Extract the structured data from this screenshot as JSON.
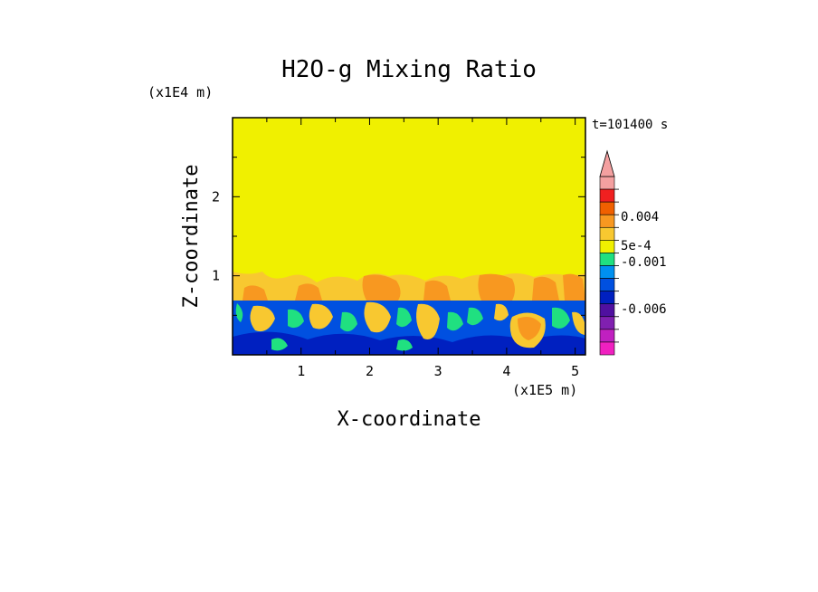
{
  "chart_data": {
    "type": "heatmap",
    "title": "H2O-g Mixing Ratio",
    "xlabel": "X-coordinate",
    "ylabel": "Z-coordinate",
    "x_scale_label": "(x1E5 m)",
    "y_scale_label": "(x1E4 m)",
    "time_label": "t=101400 s",
    "xlim": [
      0,
      5.15
    ],
    "ylim": [
      0,
      3.0
    ],
    "x_ticks": [
      "1",
      "2",
      "3",
      "4",
      "5"
    ],
    "y_ticks": [
      "1",
      "2"
    ],
    "regions": {
      "upper_value": "5e-4",
      "mixed_layer_top": 0.72,
      "transition_top": 1.05
    },
    "colorbar": {
      "labels": [
        "0.004",
        "5e-4",
        "-0.001",
        "-0.006"
      ],
      "colors": [
        "#f4a0a0",
        "#f02020",
        "#f06000",
        "#f89820",
        "#f8c830",
        "#f0f000",
        "#20e080",
        "#0090f0",
        "#0050e0",
        "#0020c0",
        "#5010a0",
        "#8020b0",
        "#c020c0",
        "#f020c0"
      ]
    }
  }
}
